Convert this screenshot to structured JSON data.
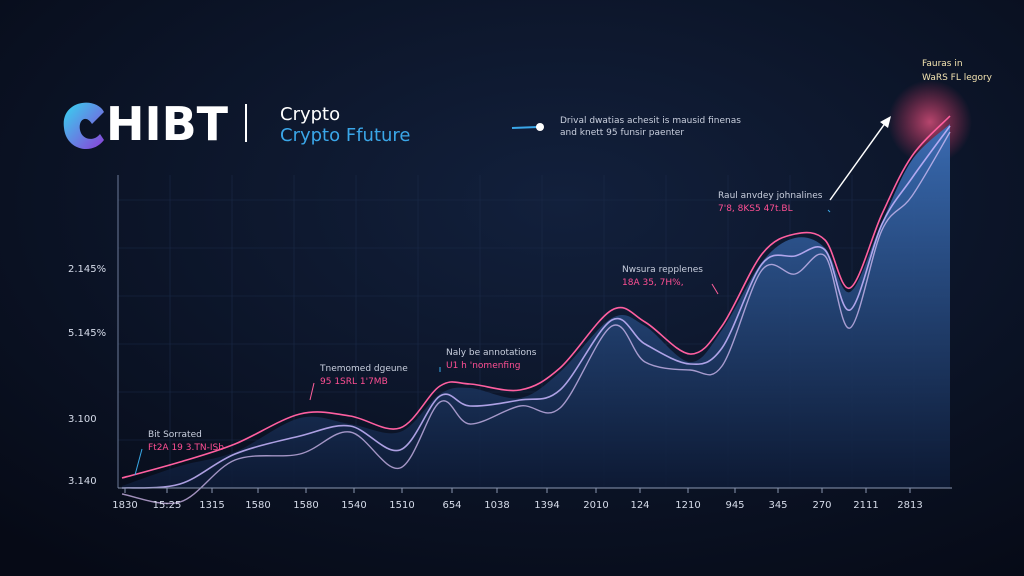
{
  "header": {
    "logo": "HIBT",
    "line1": "Crypto",
    "line2": "Crypto Ffuture"
  },
  "legend": {
    "lines": [
      "Drival dwatias achesit is mausid finenas",
      "and knett 95 funsir paenter"
    ]
  },
  "corner_note": {
    "lines": [
      "Fauras in",
      "WaRS FL legory"
    ]
  },
  "annotations": [
    {
      "title": "Raul anvdey johnalines",
      "detail": "7'8, 8KS5 47t.BL"
    },
    {
      "title": "Nwsura repplenes",
      "detail": "18A 35, 7H%,"
    },
    {
      "title": "Naly be annotations",
      "detail": "U1 h 'nomenfing"
    },
    {
      "title": "Tnemomed dgeune",
      "detail": "95 1SRL 1'7MB"
    },
    {
      "title": "Bit Sorrated",
      "detail": "Ft2A 19 3.TN-ISb"
    }
  ],
  "y_axis_labels": [
    "2.145%",
    "5.145%",
    "3.100",
    "3.140"
  ],
  "x_axis_labels": [
    "1830",
    "15:25",
    "1315",
    "1580",
    "1580",
    "1540",
    "1510",
    "654",
    "1038",
    "1394",
    "2010",
    "124",
    "1210",
    "945",
    "345",
    "270",
    "2111",
    "2813"
  ]
}
